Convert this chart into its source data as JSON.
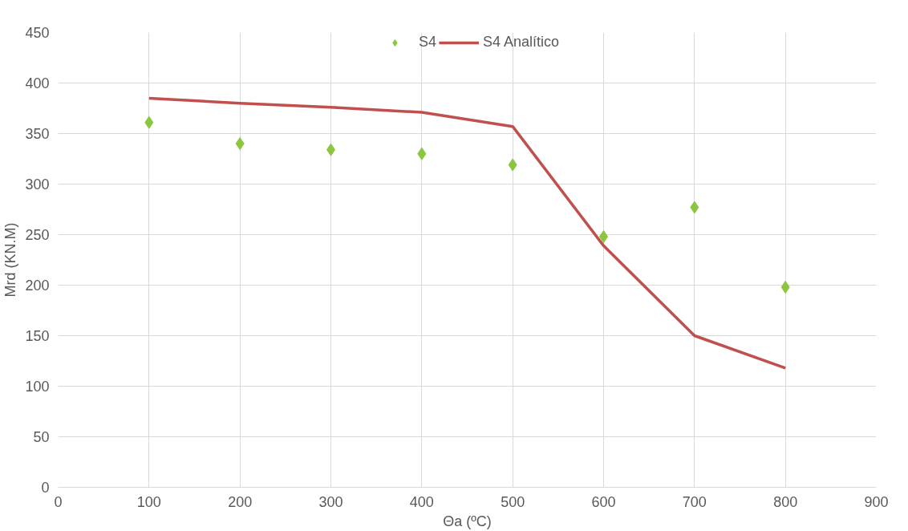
{
  "chart_data": {
    "type": "line",
    "xlabel": "Θa (ºC)",
    "ylabel": "Mrd (KN.M)",
    "x": [
      100,
      200,
      300,
      400,
      500,
      600,
      700,
      800
    ],
    "series": [
      {
        "name": "S4",
        "type": "scatter",
        "marker": "diamond",
        "color": "#8cc63f",
        "values": [
          361,
          340,
          334,
          330,
          319,
          248,
          277,
          198
        ]
      },
      {
        "name": "S4 Analítico",
        "marker": "none",
        "line_style": "solid",
        "color": "#c0504d",
        "values": [
          385,
          380,
          376,
          371,
          357,
          239,
          150,
          118
        ]
      }
    ],
    "xlim": [
      0,
      900
    ],
    "xticks": [
      0,
      100,
      200,
      300,
      400,
      500,
      600,
      700,
      800,
      900
    ],
    "ylim": [
      0,
      450
    ],
    "yticks": [
      0,
      50,
      100,
      150,
      200,
      250,
      300,
      350,
      400,
      450
    ],
    "grid": true,
    "legend": "top"
  }
}
